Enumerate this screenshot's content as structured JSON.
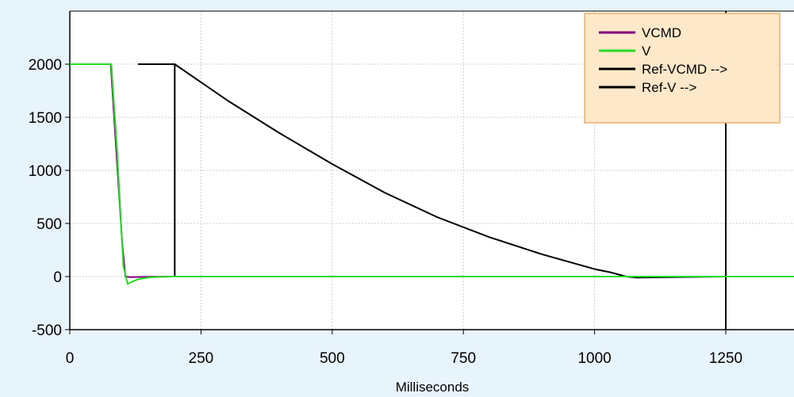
{
  "chart_data": {
    "type": "line",
    "xlabel": "Milliseconds",
    "ylabel": "",
    "xlim": [
      0,
      1380
    ],
    "ylim": [
      -500,
      2500
    ],
    "x_ticks": [
      0,
      250,
      500,
      750,
      1000,
      1250
    ],
    "y_ticks": [
      -500,
      0,
      500,
      1000,
      1500,
      2000
    ],
    "grid": true,
    "legend_position": "top-right",
    "colors": {
      "background": "#e8f4fc",
      "plot_area": "#ffffff",
      "legend_bg": "#fde9c9",
      "legend_border": "#e8b06a"
    },
    "vertical_marker_x": 1250,
    "series": [
      {
        "name": "VCMD",
        "color": "#800080",
        "x": [
          0,
          78,
          100,
          106,
          115,
          140,
          190,
          300,
          600,
          900,
          1200,
          1380
        ],
        "y": [
          2000,
          2000,
          300,
          0,
          -5,
          -3,
          0,
          0,
          0,
          0,
          0,
          0
        ]
      },
      {
        "name": "V",
        "color": "#22dd22",
        "x": [
          0,
          79,
          90,
          102,
          110,
          118,
          130,
          150,
          170,
          195,
          300,
          600,
          900,
          1200,
          1380
        ],
        "y": [
          2000,
          2000,
          1200,
          100,
          -70,
          -50,
          -25,
          -10,
          -3,
          0,
          0,
          0,
          0,
          0,
          0
        ]
      },
      {
        "name": "Ref-VCMD -->",
        "color": "#000000",
        "x": [
          130,
          200,
          200,
          400,
          700,
          1000,
          1250,
          1380
        ],
        "y": [
          2000,
          2000,
          0,
          0,
          0,
          0,
          0,
          0
        ]
      },
      {
        "name": "Ref-V -->",
        "color": "#000000",
        "x": [
          130,
          200,
          300,
          400,
          500,
          600,
          700,
          800,
          900,
          1000,
          1030,
          1060,
          1080,
          1150,
          1250,
          1380
        ],
        "y": [
          2000,
          2000,
          1660,
          1350,
          1060,
          790,
          560,
          370,
          210,
          70,
          40,
          0,
          -10,
          -5,
          0,
          0
        ]
      }
    ]
  }
}
